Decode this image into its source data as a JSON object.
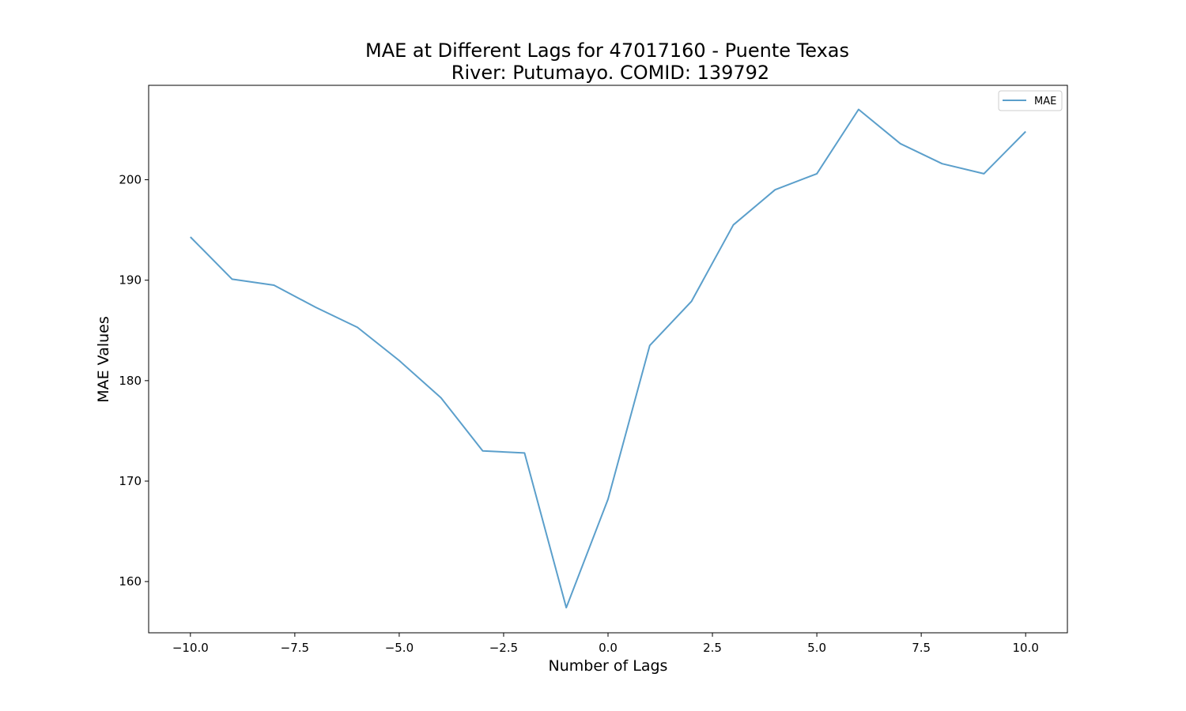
{
  "chart_data": {
    "type": "line",
    "title": "MAE at Different Lags for 47017160 - Puente Texas",
    "subtitle": "River: Putumayo. COMID: 139792",
    "xlabel": "Number of Lags",
    "ylabel": "MAE Values",
    "xlim": [
      -11.0,
      11.0
    ],
    "ylim": [
      154.9,
      209.4
    ],
    "x_ticks": [
      -10.0,
      -7.5,
      -5.0,
      -2.5,
      0.0,
      2.5,
      5.0,
      7.5,
      10.0
    ],
    "x_tick_labels": [
      "−10.0",
      "−7.5",
      "−5.0",
      "−2.5",
      "0.0",
      "2.5",
      "5.0",
      "7.5",
      "10.0"
    ],
    "y_ticks": [
      160,
      170,
      180,
      190,
      200
    ],
    "y_tick_labels": [
      "160",
      "170",
      "180",
      "190",
      "200"
    ],
    "grid": false,
    "legend_position": "top-right",
    "series": [
      {
        "name": "MAE",
        "color": "#5b9fcb",
        "x": [
          -10,
          -9,
          -8,
          -7,
          -6,
          -5,
          -4,
          -3,
          -2,
          -1,
          0,
          1,
          2,
          3,
          4,
          5,
          6,
          7,
          8,
          9,
          10
        ],
        "y": [
          194.3,
          190.1,
          189.5,
          187.3,
          185.3,
          182.0,
          178.3,
          173.0,
          172.8,
          157.4,
          168.2,
          183.5,
          187.9,
          195.5,
          199.0,
          200.6,
          207.0,
          203.6,
          201.6,
          200.6,
          204.8
        ]
      }
    ]
  }
}
